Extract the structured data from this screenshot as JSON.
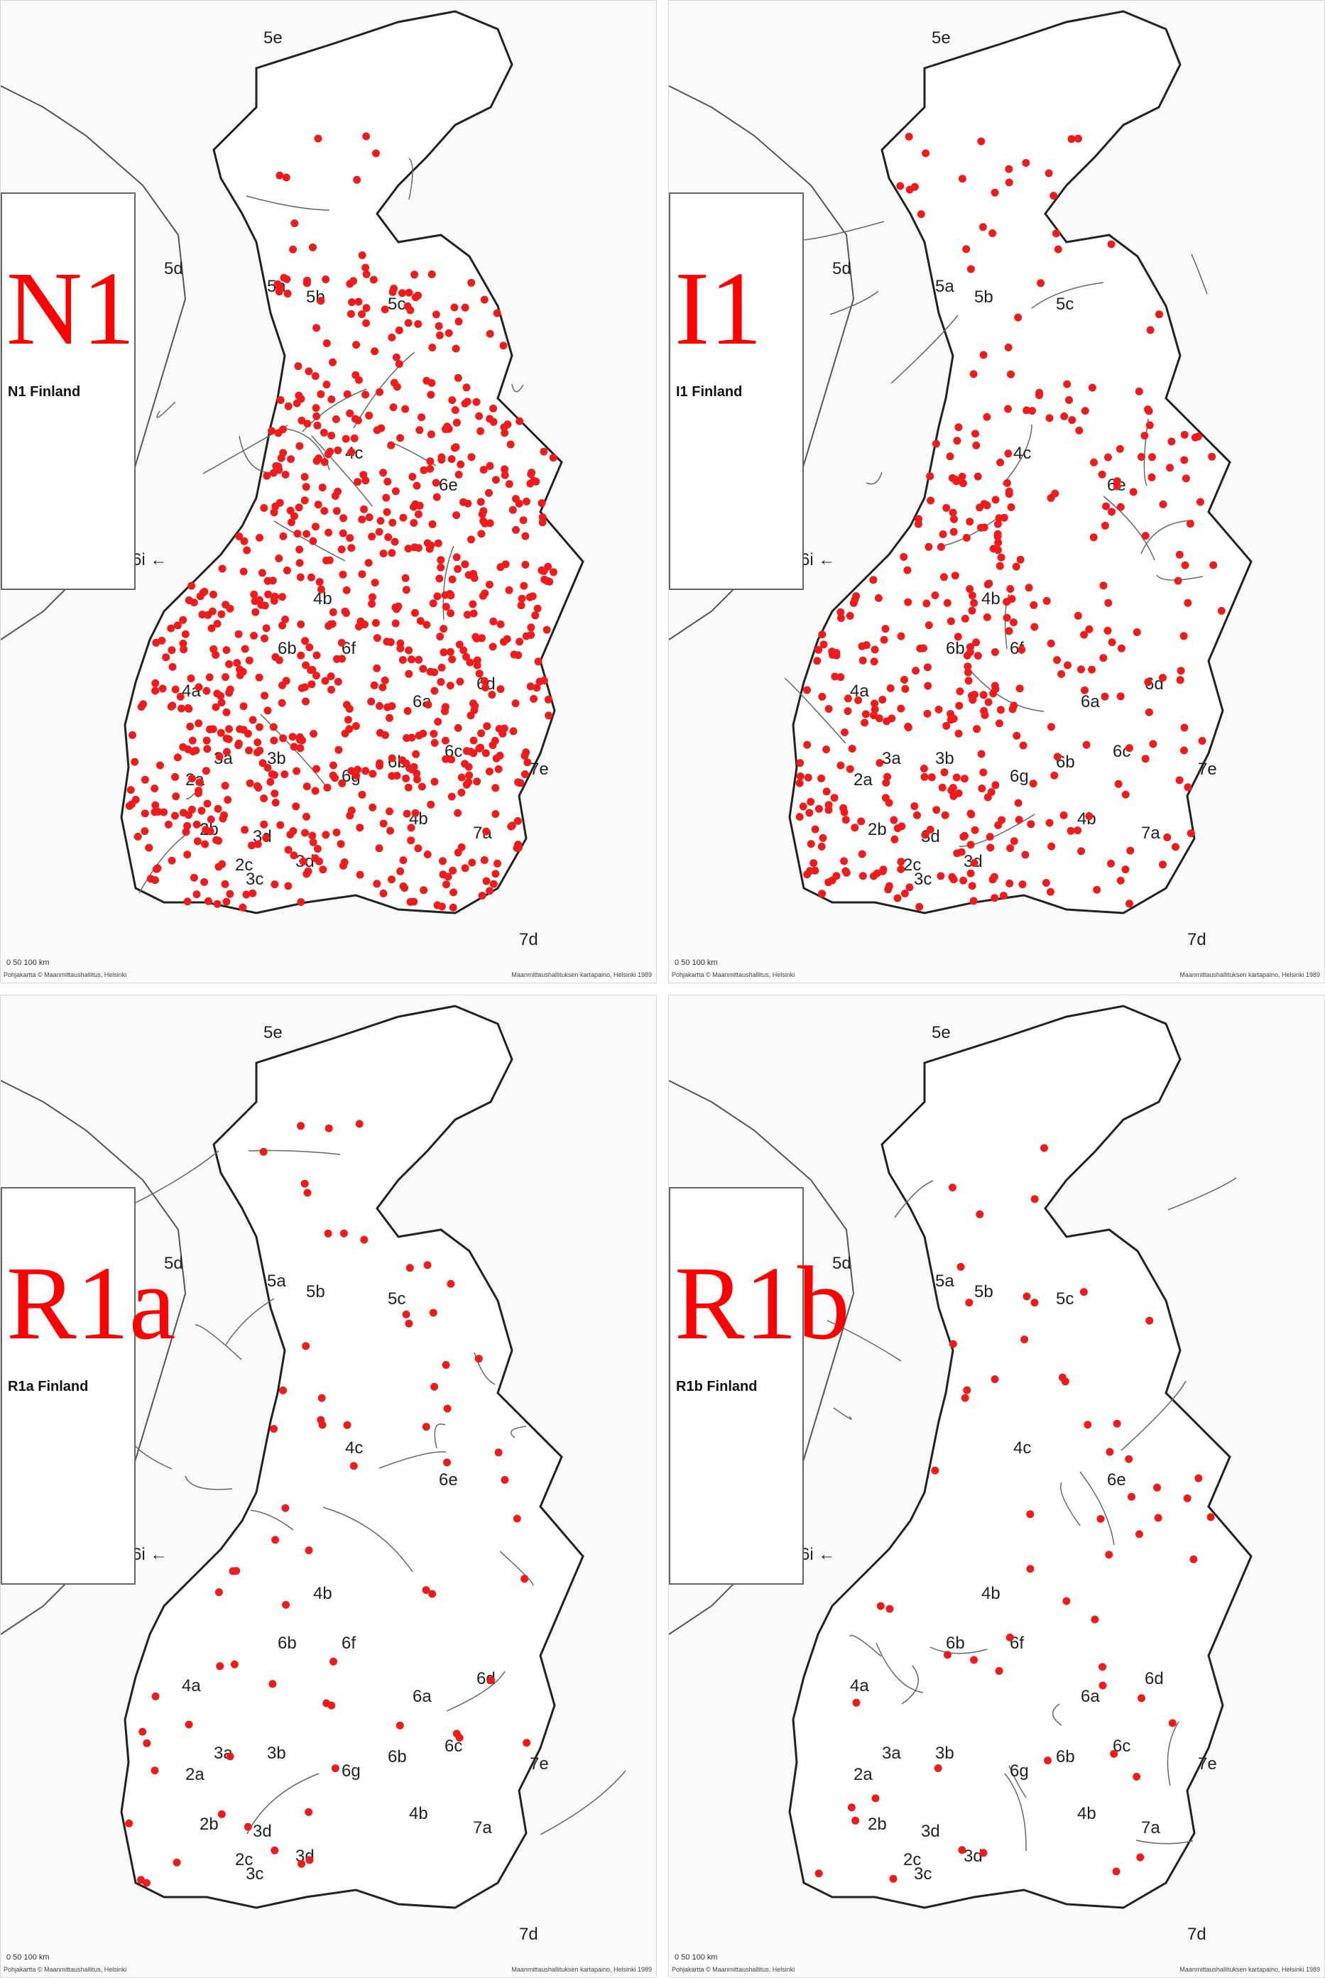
{
  "panels": [
    {
      "id": "n1",
      "label": "N1",
      "sublabel": "N1 Finland",
      "density": 820,
      "pattern": "east",
      "dot_color": "#ee1c1c"
    },
    {
      "id": "i1",
      "label": "I1",
      "sublabel": "I1 Finland",
      "density": 430,
      "pattern": "west",
      "dot_color": "#ee1c1c"
    },
    {
      "id": "r1a",
      "label": "R1a",
      "sublabel": "R1a Finland",
      "density": 70,
      "pattern": "sparse",
      "dot_color": "#ee1c1c"
    },
    {
      "id": "r1b",
      "label": "R1b",
      "sublabel": "R1b Finland",
      "density": 60,
      "pattern": "sparse",
      "dot_color": "#ee1c1c"
    }
  ],
  "regions": [
    "5e",
    "5d",
    "5a",
    "5b",
    "5c",
    "4c",
    "6e",
    "6i ←",
    "4b",
    "6b",
    "6f",
    "6a",
    "6d",
    "4a",
    "3a",
    "3b",
    "6g",
    "6b",
    "6c",
    "2a",
    "7e",
    "2b",
    "3d",
    "4b",
    "3c",
    "7a",
    "3d",
    "7d",
    "2c"
  ],
  "footer": {
    "left": "Pohjakartta © Maanmittaushallitus, Helsinki",
    "right": "Maanmittaushallituksen kartapaino, Helsinki 1989",
    "scale": "0    50    100 km"
  }
}
